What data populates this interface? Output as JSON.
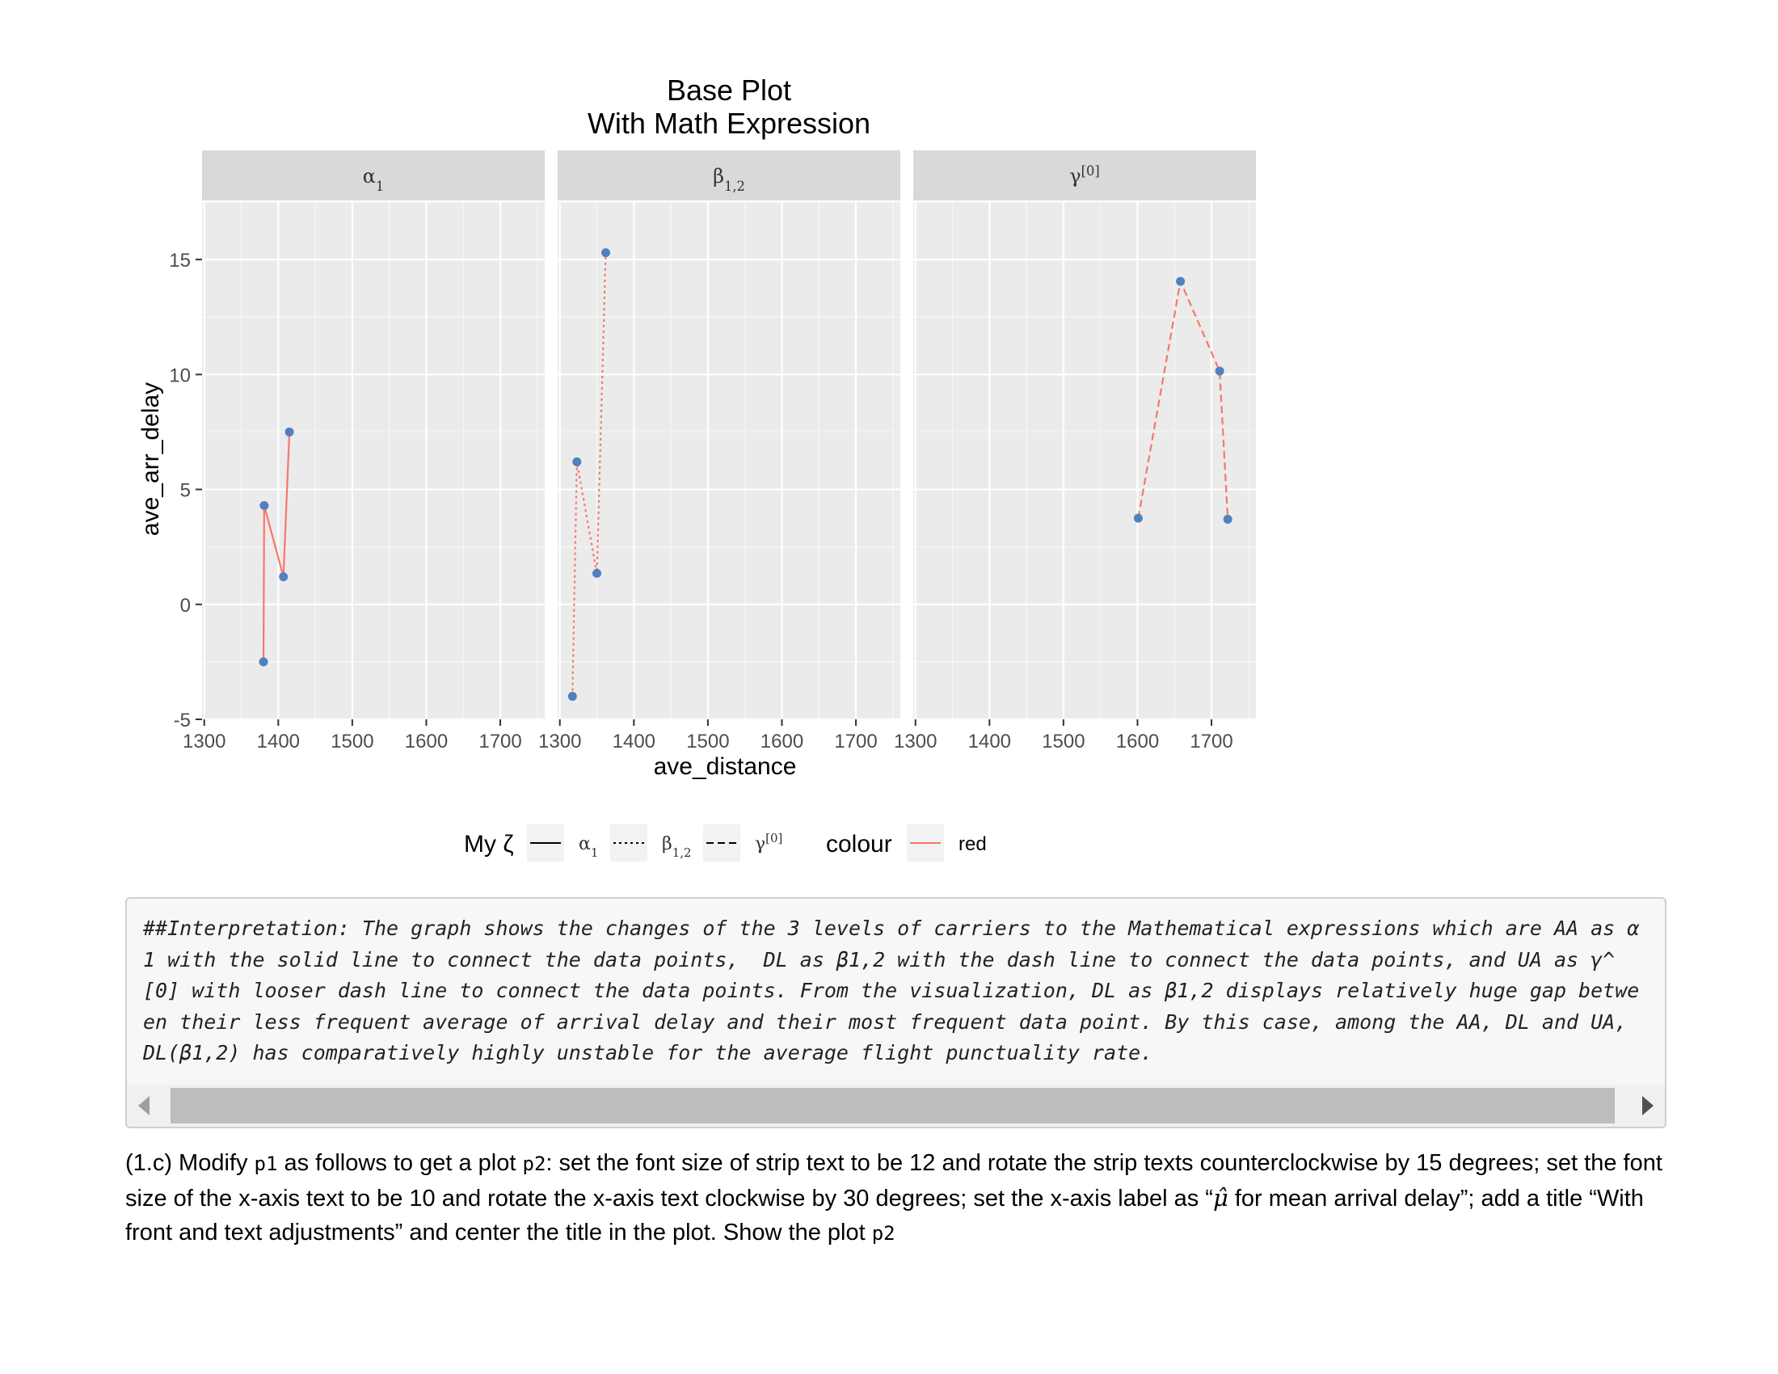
{
  "chart_data": {
    "type": "line",
    "title": [
      "Base Plot",
      "With Math Expression"
    ],
    "xlabel": "ave_distance",
    "ylabel": "ave_arr_delay",
    "xlim": [
      1297,
      1760
    ],
    "ylim": [
      -5,
      17.5
    ],
    "x_ticks": [
      1300,
      1400,
      1500,
      1600,
      1700
    ],
    "y_ticks": [
      -5,
      0,
      5,
      10,
      15
    ],
    "grid": true,
    "point_color": "#4f81bd",
    "line_color": "#f8766d",
    "panel_color": "#ebebeb",
    "strip_color": "#d9d9d9",
    "panels": [
      {
        "strip": {
          "base": "α",
          "sub": "1",
          "sup": ""
        },
        "linetype": "solid",
        "x": [
          1380,
          1381,
          1407,
          1415
        ],
        "y": [
          -2.5,
          4.3,
          1.2,
          7.5
        ]
      },
      {
        "strip": {
          "base": "β",
          "sub": "1,2",
          "sup": ""
        },
        "linetype": "dotted",
        "x": [
          1317,
          1323,
          1350,
          1362
        ],
        "y": [
          -4.0,
          6.2,
          1.35,
          15.3
        ]
      },
      {
        "strip": {
          "base": "γ",
          "sub": "",
          "sup": "[0]"
        },
        "linetype": "dashed",
        "x": [
          1601,
          1658,
          1711,
          1722
        ],
        "y": [
          3.75,
          14.05,
          10.15,
          3.7
        ]
      }
    ],
    "legend": {
      "position": "bottom",
      "linetype_title": "My ζ",
      "linetype_entries": [
        {
          "base": "α",
          "sub": "1",
          "sup": "",
          "linetype": "solid"
        },
        {
          "base": "β",
          "sub": "1,2",
          "sup": "",
          "linetype": "dotted"
        },
        {
          "base": "γ",
          "sub": "",
          "sup": "[0]",
          "linetype": "dashed"
        }
      ],
      "colour_title": "colour",
      "colour_entries": [
        {
          "label": "red"
        }
      ]
    }
  },
  "code_output": "##Interpretation: The graph shows the changes of the 3 levels of carriers to the Mathematical expressions which are AA as α1 with the solid line to connect the data points,  DL as β1,2 with the dash line to connect the data points, and UA as γ^[0] with looser dash line to connect the data points. From the visualization, DL as β1,2 displays relatively huge gap between their less frequent average of arrival delay and their most frequent data point. By this case, among the AA, DL and UA, DL(β1,2) has comparatively highly unstable for the average flight punctuality rate.",
  "prose": {
    "t1": "(1.c) Modify ",
    "c1": "p1",
    "t2": " as follows to get a plot ",
    "c2": "p2",
    "t3": ": set the font size of strip text to be 12 and rotate the strip texts counterclockwise by 15 degrees; set the font size of the x-axis text to be 10 and rotate the x-axis text clockwise by 30 degrees; set the x-axis label as “",
    "mu": "μ̂",
    "t4": " for mean arrival delay”; add a title “With front and text adjustments” and center the title in the plot. Show the plot ",
    "c3": "p2"
  }
}
